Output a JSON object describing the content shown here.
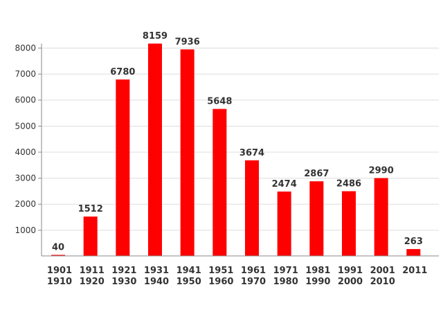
{
  "chart_data": {
    "type": "bar",
    "title": "",
    "xlabel": "",
    "ylabel": "",
    "categories": [
      [
        "1901",
        "1910"
      ],
      [
        "1911",
        "1920"
      ],
      [
        "1921",
        "1930"
      ],
      [
        "1931",
        "1940"
      ],
      [
        "1941",
        "1950"
      ],
      [
        "1951",
        "1960"
      ],
      [
        "1961",
        "1970"
      ],
      [
        "1971",
        "1980"
      ],
      [
        "1981",
        "1990"
      ],
      [
        "1991",
        "2000"
      ],
      [
        "2001",
        "2010"
      ],
      [
        "2011"
      ]
    ],
    "values": [
      40,
      1512,
      6780,
      8159,
      7936,
      5648,
      3674,
      2474,
      2867,
      2486,
      2990,
      263
    ],
    "data_labels": [
      "40",
      "1512",
      "6780",
      "8159",
      "7936",
      "5648",
      "3674",
      "2474",
      "2867",
      "2486",
      "2990",
      "263"
    ],
    "yticks": [
      1000,
      2000,
      3000,
      4000,
      5000,
      6000,
      7000,
      8000
    ],
    "ytick_labels": [
      "1000",
      "2000",
      "3000",
      "4000",
      "5000",
      "6000",
      "7000",
      "8000"
    ],
    "ylim": [
      0,
      8159
    ],
    "grid": true,
    "legend": "none",
    "bar_color": "#ff0000"
  }
}
